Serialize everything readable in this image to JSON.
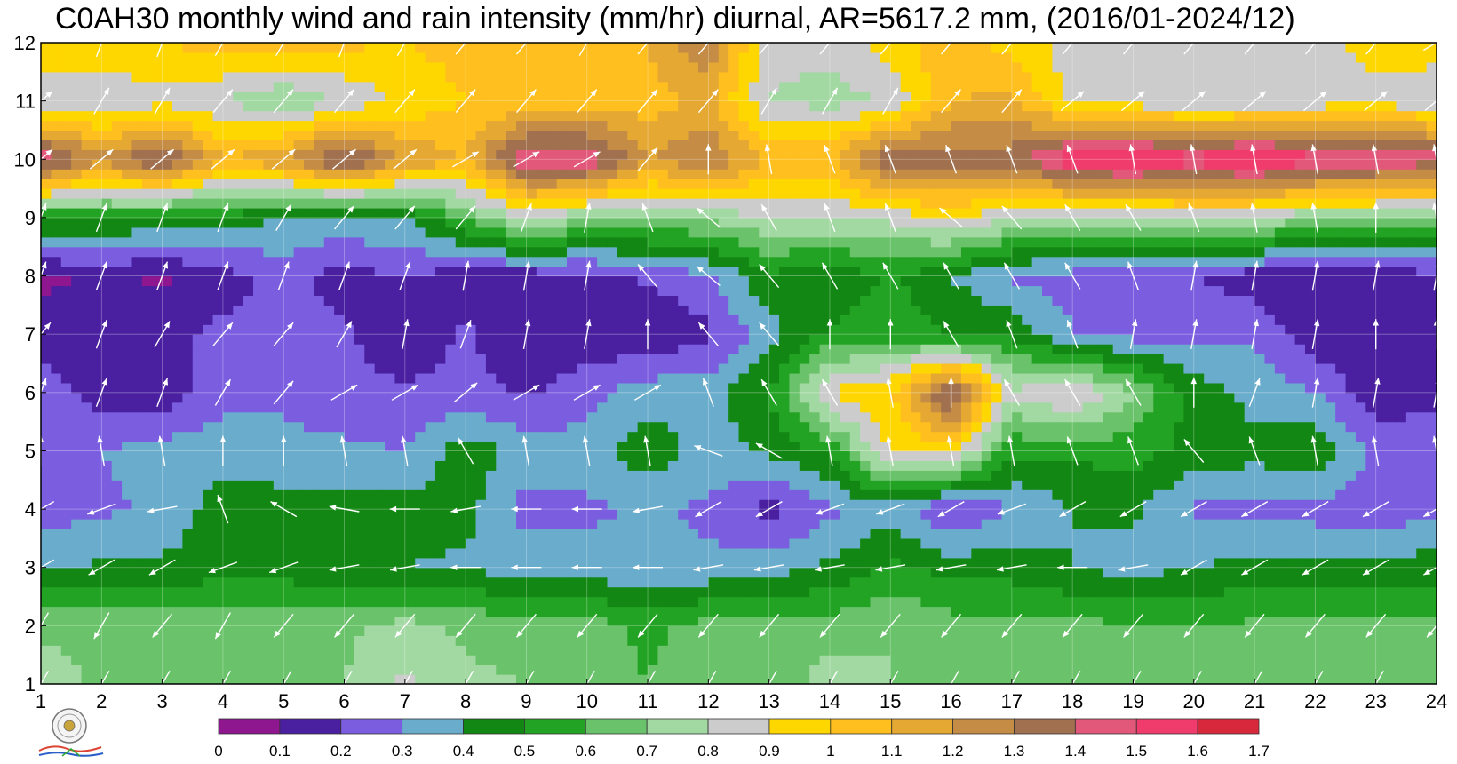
{
  "chart_data": {
    "type": "heatmap",
    "title": "C0AH30 monthly wind and rain intensity (mm/hr) diurnal, AR=5617.2 mm, (2016/01-2024/12)",
    "xlabel": "",
    "ylabel": "",
    "x_ticks": [
      "1",
      "2",
      "3",
      "4",
      "5",
      "6",
      "7",
      "8",
      "9",
      "10",
      "11",
      "12",
      "13",
      "14",
      "15",
      "16",
      "17",
      "18",
      "19",
      "20",
      "21",
      "22",
      "23",
      "24"
    ],
    "y_ticks": [
      "1",
      "2",
      "3",
      "4",
      "5",
      "6",
      "7",
      "8",
      "9",
      "10",
      "11",
      "12"
    ],
    "xlim": [
      1,
      24
    ],
    "ylim": [
      1,
      12
    ],
    "grid": true,
    "colorbar": {
      "levels": [
        "0",
        "0.1",
        "0.2",
        "0.3",
        "0.4",
        "0.5",
        "0.6",
        "0.7",
        "0.8",
        "0.9",
        "1",
        "1.1",
        "1.2",
        "1.3",
        "1.4",
        "1.5",
        "1.6",
        "1.7"
      ],
      "colors": [
        "#8e168e",
        "#4a1fa0",
        "#7b5ee0",
        "#6aaccc",
        "#138713",
        "#23a323",
        "#6ac26a",
        "#a2d8a2",
        "#cccccc",
        "#ffd700",
        "#ffbf1f",
        "#e5a833",
        "#c48c44",
        "#a0704f",
        "#e2587a",
        "#f03c6c",
        "#d8283c"
      ]
    },
    "values_mm_per_hr": [
      [
        0.75,
        0.68,
        0.66,
        0.64,
        0.64,
        0.7,
        0.82,
        0.72,
        0.7,
        0.65,
        0.6,
        0.66,
        0.6,
        0.76,
        0.7,
        0.63,
        0.63,
        0.63,
        0.64,
        0.63,
        0.63,
        0.64,
        0.63,
        0.62
      ],
      [
        0.68,
        0.68,
        0.66,
        0.66,
        0.66,
        0.68,
        0.74,
        0.68,
        0.66,
        0.64,
        0.58,
        0.64,
        0.64,
        0.64,
        0.7,
        0.64,
        0.62,
        0.62,
        0.62,
        0.6,
        0.62,
        0.66,
        0.62,
        0.62
      ],
      [
        0.38,
        0.42,
        0.42,
        0.46,
        0.45,
        0.42,
        0.4,
        0.38,
        0.36,
        0.34,
        0.3,
        0.32,
        0.36,
        0.42,
        0.52,
        0.46,
        0.46,
        0.4,
        0.36,
        0.4,
        0.44,
        0.42,
        0.42,
        0.46
      ],
      [
        0.25,
        0.28,
        0.32,
        0.46,
        0.44,
        0.44,
        0.44,
        0.44,
        0.26,
        0.28,
        0.32,
        0.28,
        0.16,
        0.28,
        0.36,
        0.18,
        0.3,
        0.4,
        0.42,
        0.28,
        0.26,
        0.26,
        0.25,
        0.26
      ],
      [
        0.25,
        0.3,
        0.34,
        0.36,
        0.33,
        0.32,
        0.3,
        0.46,
        0.36,
        0.34,
        0.46,
        0.36,
        0.42,
        0.52,
        0.92,
        0.95,
        0.52,
        0.52,
        0.55,
        0.46,
        0.44,
        0.48,
        0.28,
        0.3
      ],
      [
        0.28,
        0.14,
        0.14,
        0.26,
        0.28,
        0.24,
        0.22,
        0.24,
        0.18,
        0.26,
        0.36,
        0.36,
        0.5,
        0.92,
        0.98,
        1.46,
        0.82,
        0.92,
        0.7,
        0.46,
        0.36,
        0.3,
        0.13,
        0.14
      ],
      [
        0.14,
        0.12,
        0.18,
        0.22,
        0.2,
        0.22,
        0.1,
        0.22,
        0.1,
        0.14,
        0.1,
        0.18,
        0.36,
        0.52,
        0.56,
        0.5,
        0.48,
        0.3,
        0.26,
        0.28,
        0.28,
        0.14,
        0.12,
        0.2
      ],
      [
        0.08,
        0.12,
        0.08,
        0.16,
        0.24,
        0.16,
        0.2,
        0.14,
        0.14,
        0.16,
        0.22,
        0.28,
        0.48,
        0.42,
        0.52,
        0.4,
        0.28,
        0.26,
        0.22,
        0.2,
        0.14,
        0.1,
        0.14,
        0.16
      ],
      [
        0.52,
        0.52,
        0.48,
        0.46,
        0.4,
        0.38,
        0.4,
        0.62,
        0.84,
        0.7,
        0.7,
        0.72,
        0.8,
        0.8,
        0.82,
        0.92,
        0.8,
        0.76,
        0.76,
        0.84,
        0.8,
        0.7,
        0.7,
        0.7
      ],
      [
        1.48,
        1.22,
        1.44,
        1.1,
        1.2,
        1.45,
        1.2,
        1.1,
        1.5,
        1.5,
        1.2,
        1.3,
        1.1,
        1.1,
        1.4,
        1.34,
        1.35,
        1.6,
        1.62,
        1.55,
        1.62,
        1.55,
        1.5,
        1.45
      ],
      [
        0.84,
        0.82,
        0.86,
        0.8,
        0.7,
        0.82,
        0.92,
        1.0,
        1.02,
        1.05,
        1.05,
        1.12,
        0.8,
        0.76,
        0.8,
        1.1,
        1.12,
        0.86,
        0.84,
        0.8,
        0.8,
        0.84,
        0.85,
        0.84
      ],
      [
        0.98,
        0.96,
        1.0,
        1.04,
        1.06,
        1.02,
        1.0,
        1.04,
        1.0,
        1.08,
        1.1,
        1.3,
        0.82,
        0.84,
        0.96,
        1.06,
        0.96,
        0.85,
        0.84,
        0.84,
        0.84,
        0.84,
        0.96,
        0.94
      ]
    ],
    "wind_direction_from_deg": [
      [
        30,
        30,
        30,
        30,
        30,
        30,
        30,
        30,
        30,
        30,
        30,
        30,
        30,
        30,
        30,
        30,
        30,
        30,
        30,
        30,
        30,
        30,
        30,
        30
      ],
      [
        30,
        30,
        40,
        30,
        40,
        40,
        40,
        40,
        40,
        40,
        40,
        40,
        40,
        40,
        40,
        40,
        40,
        40,
        40,
        40,
        40,
        40,
        40,
        40
      ],
      [
        60,
        60,
        60,
        70,
        70,
        80,
        80,
        90,
        90,
        90,
        90,
        80,
        80,
        80,
        80,
        80,
        80,
        90,
        80,
        60,
        60,
        60,
        60,
        60
      ],
      [
        60,
        70,
        80,
        160,
        120,
        100,
        90,
        80,
        90,
        90,
        80,
        60,
        60,
        70,
        70,
        60,
        70,
        60,
        60,
        60,
        60,
        60,
        60,
        60
      ],
      [
        180,
        170,
        170,
        180,
        180,
        170,
        170,
        150,
        170,
        170,
        170,
        110,
        120,
        170,
        170,
        170,
        170,
        160,
        160,
        140,
        160,
        170,
        170,
        170
      ],
      [
        200,
        200,
        200,
        210,
        220,
        240,
        240,
        230,
        240,
        240,
        240,
        160,
        150,
        150,
        170,
        180,
        150,
        150,
        150,
        180,
        200,
        190,
        190,
        190
      ],
      [
        220,
        200,
        210,
        220,
        220,
        210,
        190,
        200,
        190,
        190,
        180,
        140,
        140,
        180,
        180,
        150,
        160,
        160,
        190,
        190,
        190,
        190,
        180,
        180
      ],
      [
        200,
        200,
        200,
        200,
        200,
        200,
        200,
        190,
        190,
        190,
        140,
        130,
        140,
        150,
        150,
        150,
        150,
        150,
        160,
        190,
        190,
        190,
        190,
        190
      ],
      [
        200,
        200,
        200,
        200,
        210,
        220,
        220,
        220,
        200,
        190,
        160,
        130,
        150,
        160,
        160,
        130,
        140,
        150,
        150,
        160,
        170,
        170,
        180,
        170
      ],
      [
        230,
        230,
        230,
        230,
        230,
        230,
        230,
        240,
        240,
        240,
        220,
        180,
        170,
        160,
        160,
        160,
        160,
        160,
        170,
        170,
        170,
        170,
        170,
        170
      ],
      [
        230,
        210,
        210,
        220,
        220,
        220,
        220,
        220,
        220,
        220,
        220,
        220,
        210,
        210,
        210,
        220,
        220,
        230,
        230,
        230,
        230,
        230,
        230,
        230
      ],
      [
        210,
        200,
        200,
        210,
        210,
        200,
        210,
        220,
        220,
        210,
        220,
        220,
        220,
        220,
        220,
        220,
        220,
        220,
        220,
        220,
        220,
        220,
        220,
        240
      ]
    ]
  }
}
